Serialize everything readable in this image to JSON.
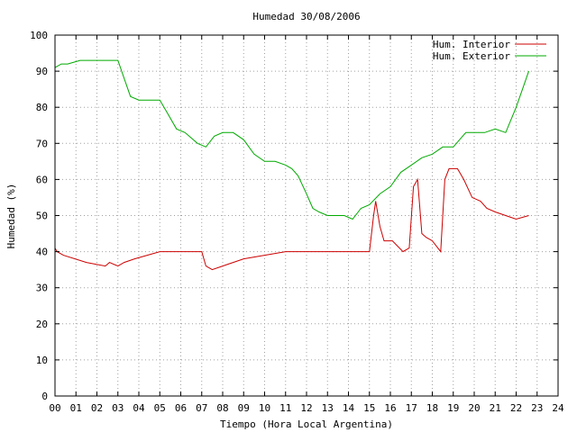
{
  "chart_data": {
    "type": "line",
    "title": "Humedad 30/08/2006",
    "xlabel": "Tiempo (Hora Local Argentina)",
    "ylabel": "Humedad (%)",
    "xlim": [
      0,
      24
    ],
    "ylim": [
      0,
      100
    ],
    "x_ticks": [
      "00",
      "01",
      "02",
      "03",
      "04",
      "05",
      "06",
      "07",
      "08",
      "09",
      "10",
      "11",
      "12",
      "13",
      "14",
      "15",
      "16",
      "17",
      "18",
      "19",
      "20",
      "21",
      "22",
      "23",
      "24"
    ],
    "y_ticks": [
      "0",
      "10",
      "20",
      "30",
      "40",
      "50",
      "60",
      "70",
      "80",
      "90",
      "100"
    ],
    "grid": true,
    "legend_position": "top-right",
    "series": [
      {
        "name": "Hum. Interior",
        "color": "#cc0000",
        "x": [
          0,
          0.1,
          0.4,
          1.5,
          2.4,
          2.6,
          3.0,
          3.3,
          3.8,
          4.4,
          5.0,
          6.0,
          6.5,
          7.0,
          7.2,
          7.5,
          8.0,
          8.5,
          9.0,
          10.0,
          11.0,
          12.0,
          13.0,
          14.0,
          15.0,
          15.2,
          15.3,
          15.5,
          15.7,
          16.1,
          16.6,
          16.9,
          17.1,
          17.3,
          17.5,
          17.7,
          18.0,
          18.4,
          18.6,
          18.8,
          19.2,
          19.5,
          19.9,
          20.3,
          20.6,
          21.0,
          21.5,
          22.0,
          22.6
        ],
        "y": [
          41,
          40,
          39,
          37,
          36,
          37,
          36,
          37,
          38,
          39,
          40,
          40,
          40,
          40,
          36,
          35,
          36,
          37,
          38,
          39,
          40,
          40,
          40,
          40,
          40,
          50,
          54,
          47,
          43,
          43,
          40,
          41,
          58,
          60,
          45,
          44,
          43,
          40,
          60,
          63,
          63,
          60,
          55,
          54,
          52,
          51,
          50,
          49,
          50
        ]
      },
      {
        "name": "Hum. Exterior",
        "color": "#00aa00",
        "x": [
          0,
          0.3,
          0.6,
          1.2,
          2.0,
          3.0,
          3.3,
          3.6,
          4.0,
          4.5,
          5.0,
          5.4,
          5.8,
          6.2,
          6.8,
          7.2,
          7.6,
          8.0,
          8.5,
          9.0,
          9.5,
          10.0,
          10.5,
          11.0,
          11.3,
          11.6,
          12.0,
          12.3,
          12.6,
          13.0,
          13.4,
          13.8,
          14.2,
          14.6,
          15.0,
          15.5,
          16.0,
          16.5,
          17.0,
          17.5,
          18.0,
          18.5,
          19.0,
          19.3,
          19.6,
          20.0,
          20.5,
          21.0,
          21.5,
          22.0,
          22.3,
          22.6
        ],
        "y": [
          91,
          92,
          92,
          93,
          93,
          93,
          88,
          83,
          82,
          82,
          82,
          78,
          74,
          73,
          70,
          69,
          72,
          73,
          73,
          71,
          67,
          65,
          65,
          64,
          63,
          61,
          56,
          52,
          51,
          50,
          50,
          50,
          49,
          52,
          53,
          56,
          58,
          62,
          64,
          66,
          67,
          69,
          69,
          71,
          73,
          73,
          73,
          74,
          73,
          80,
          85,
          90
        ]
      }
    ]
  }
}
